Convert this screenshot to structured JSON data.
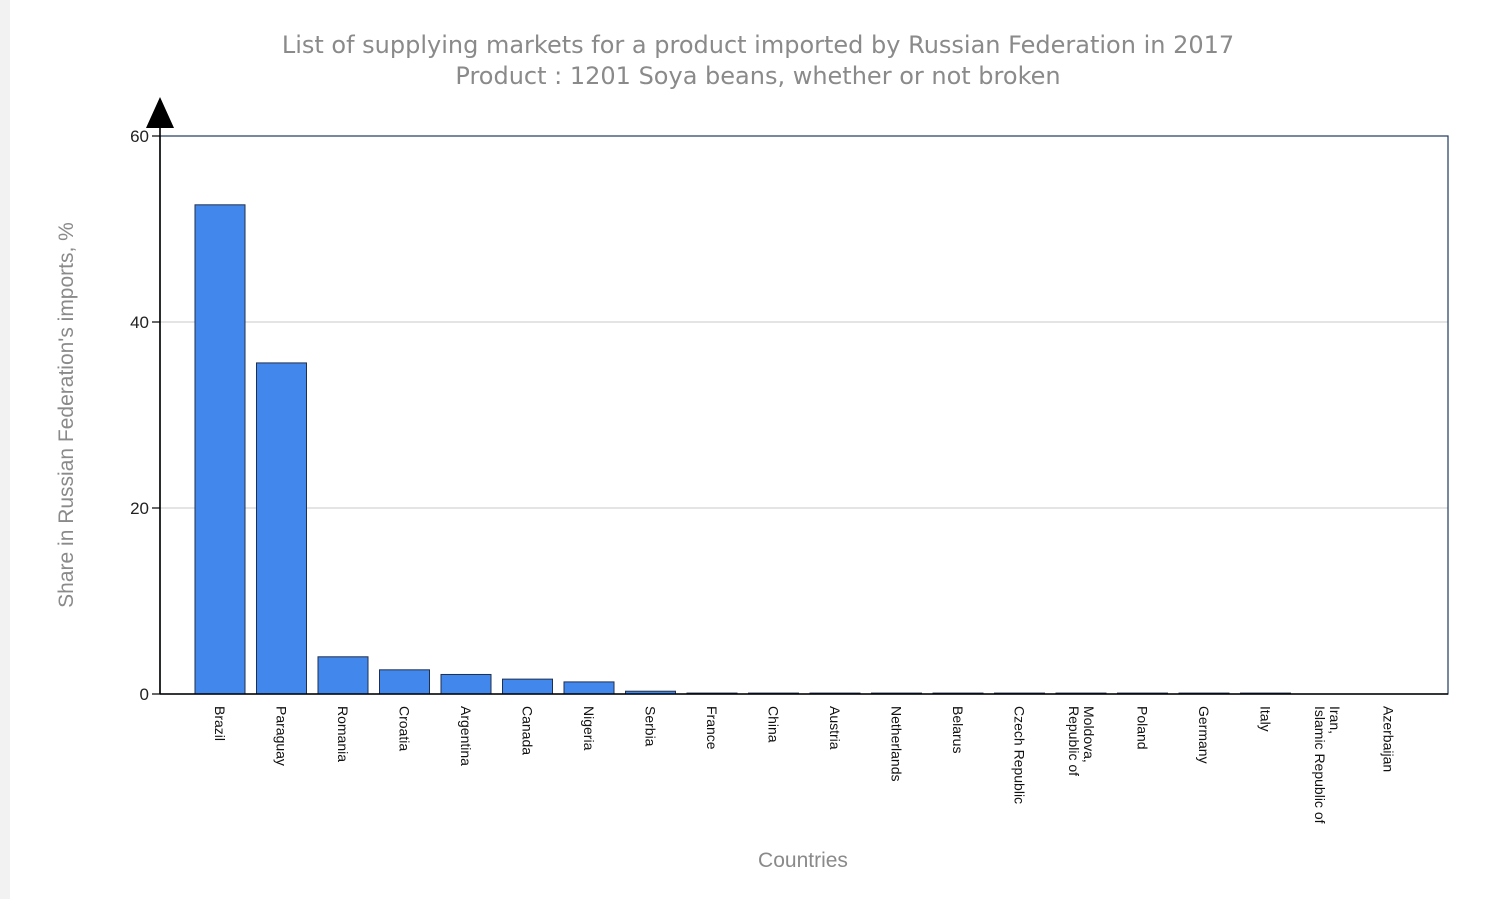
{
  "chart_data": {
    "type": "bar",
    "title": "List of supplying markets for a product imported by Russian Federation in 2017",
    "subtitle": "Product : 1201 Soya beans, whether or not broken",
    "xlabel": "Countries",
    "ylabel": "Share in Russian Federation's imports, %",
    "ylim": [
      0,
      60
    ],
    "yticks": [
      "0",
      "20",
      "40",
      "60"
    ],
    "grid": true,
    "categories": [
      "Brazil",
      "Paraguay",
      "Romania",
      "Croatia",
      "Argentina",
      "Canada",
      "Nigeria",
      "Serbia",
      "France",
      "China",
      "Austria",
      "Netherlands",
      "Belarus",
      "Czech Republic",
      "Moldova, Republic of",
      "Poland",
      "Germany",
      "Italy",
      "Iran, Islamic Republic of",
      "Azerbaijan"
    ],
    "values": [
      52.6,
      35.6,
      4.0,
      2.6,
      2.1,
      1.6,
      1.3,
      0.3,
      0.1,
      0.1,
      0.1,
      0.1,
      0.1,
      0.1,
      0.1,
      0.1,
      0.1,
      0.1,
      0.0,
      0.0
    ],
    "bar_color": "#4287ec"
  }
}
